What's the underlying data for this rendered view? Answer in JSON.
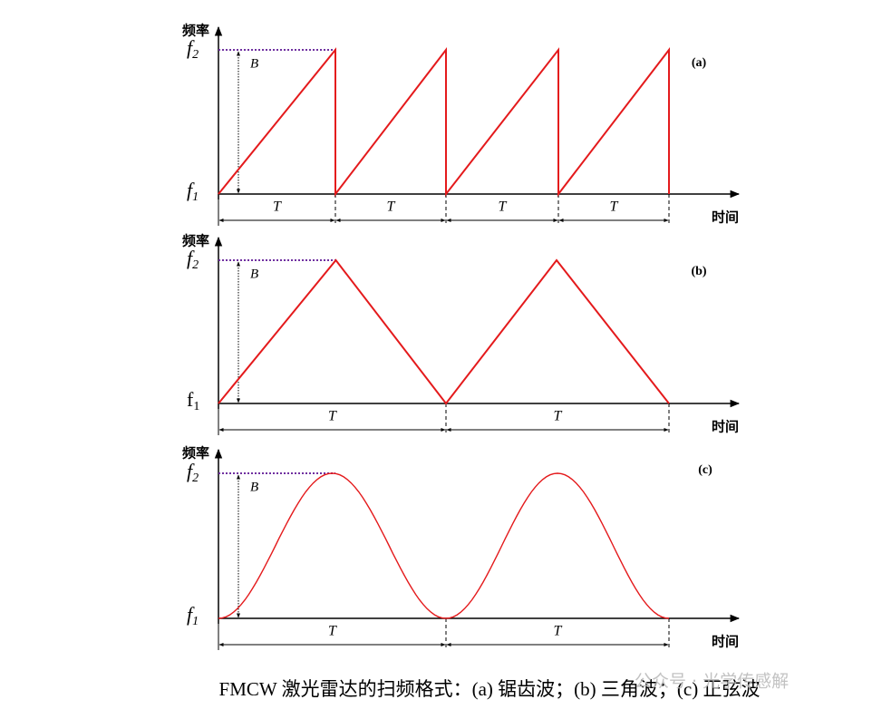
{
  "panels": [
    {
      "tag": "(a)",
      "y_label": "频率",
      "f2": {
        "base": "f",
        "sub": "2"
      },
      "f1": {
        "base": "f",
        "sub": "1"
      },
      "bandwidth": "B",
      "periods": [
        "T",
        "T",
        "T",
        "T"
      ],
      "x_label": "时间"
    },
    {
      "tag": "(b)",
      "y_label": "频率",
      "f2": {
        "base": "f",
        "sub": "2"
      },
      "f1": {
        "base": "f",
        "sub": "1"
      },
      "bandwidth": "B",
      "periods": [
        "T",
        "T"
      ],
      "x_label": "时间"
    },
    {
      "tag": "(c)",
      "y_label": "频率",
      "f2": {
        "base": "f",
        "sub": "2"
      },
      "f1": {
        "base": "f",
        "sub": "1"
      },
      "bandwidth": "B",
      "periods": [
        "T",
        "T"
      ],
      "x_label": "时间"
    }
  ],
  "caption": "FMCW 激光雷达的扫频格式：(a) 锯齿波；(b) 三角波；(c) 正弦波",
  "watermark": "公众号 · 光学传感解"
}
